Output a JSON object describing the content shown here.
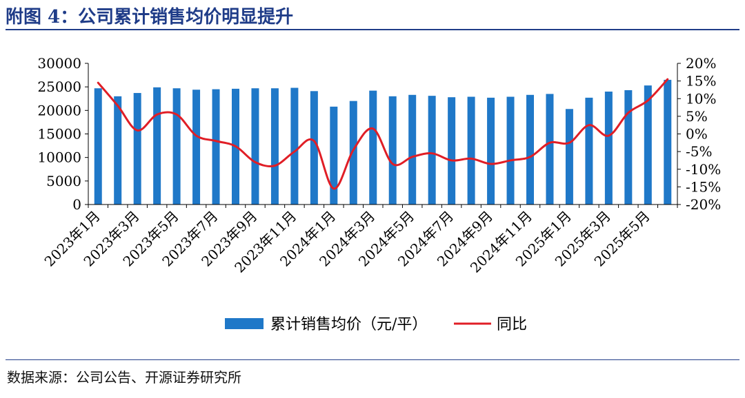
{
  "figure": {
    "title": "附图 4：公司累计销售均价明显提升",
    "source": "数据来源：公司公告、开源证券研究所"
  },
  "chart_data": {
    "type": "bar+line",
    "categories": [
      "2023年1月",
      "2023年2月",
      "2023年3月",
      "2023年4月",
      "2023年5月",
      "2023年6月",
      "2023年7月",
      "2023年8月",
      "2023年9月",
      "2023年10月",
      "2023年11月",
      "2023年12月",
      "2024年1月",
      "2024年2月",
      "2024年3月",
      "2024年4月",
      "2024年5月",
      "2024年6月",
      "2024年7月",
      "2024年8月",
      "2024年9月",
      "2024年10月",
      "2024年11月",
      "2024年12月",
      "2025年1月",
      "2025年2月",
      "2025年3月",
      "2025年4月",
      "2025年5月",
      "2025年6月"
    ],
    "tick_labels": [
      "2023年1月",
      "2023年3月",
      "2023年5月",
      "2023年7月",
      "2023年9月",
      "2023年11月",
      "2024年1月",
      "2024年3月",
      "2024年5月",
      "2024年7月",
      "2024年9月",
      "2024年11月",
      "2025年1月",
      "2025年3月",
      "2025年5月"
    ],
    "series": [
      {
        "name": "累计销售均价（元/平）",
        "type": "bar",
        "axis": "left",
        "color": "#1f78c8",
        "values": [
          24700,
          23000,
          23700,
          24900,
          24700,
          24400,
          24500,
          24600,
          24700,
          24700,
          24800,
          24100,
          20800,
          22000,
          24200,
          23000,
          23300,
          23100,
          22800,
          22900,
          22700,
          22900,
          23300,
          23500,
          20300,
          22700,
          24000,
          24300,
          25300,
          26500
        ]
      },
      {
        "name": "同比",
        "type": "line",
        "axis": "right",
        "color": "#e01e26",
        "values": [
          14.5,
          8.0,
          1.0,
          5.5,
          5.5,
          -0.5,
          -2.0,
          -3.5,
          -8.0,
          -9.0,
          -5.0,
          -2.0,
          -15.5,
          -4.5,
          1.5,
          -8.5,
          -6.5,
          -5.5,
          -7.5,
          -7.0,
          -8.5,
          -7.5,
          -6.5,
          -2.5,
          -2.5,
          2.5,
          -0.5,
          6.0,
          9.5,
          15.5
        ]
      }
    ],
    "y_left": {
      "lim": [
        0,
        30000
      ],
      "ticks": [
        0,
        5000,
        10000,
        15000,
        20000,
        25000,
        30000
      ],
      "tick_labels": [
        "0",
        "5000",
        "10000",
        "15000",
        "20000",
        "25000",
        "30000"
      ]
    },
    "y_right": {
      "lim": [
        -20,
        20
      ],
      "ticks": [
        -20,
        -15,
        -10,
        -5,
        0,
        5,
        10,
        15,
        20
      ],
      "tick_labels": [
        "-20%",
        "-15%",
        "-10%",
        "-5%",
        "0%",
        "5%",
        "10%",
        "15%",
        "20%"
      ]
    },
    "legend": {
      "position": "bottom-center"
    },
    "grid": false
  }
}
